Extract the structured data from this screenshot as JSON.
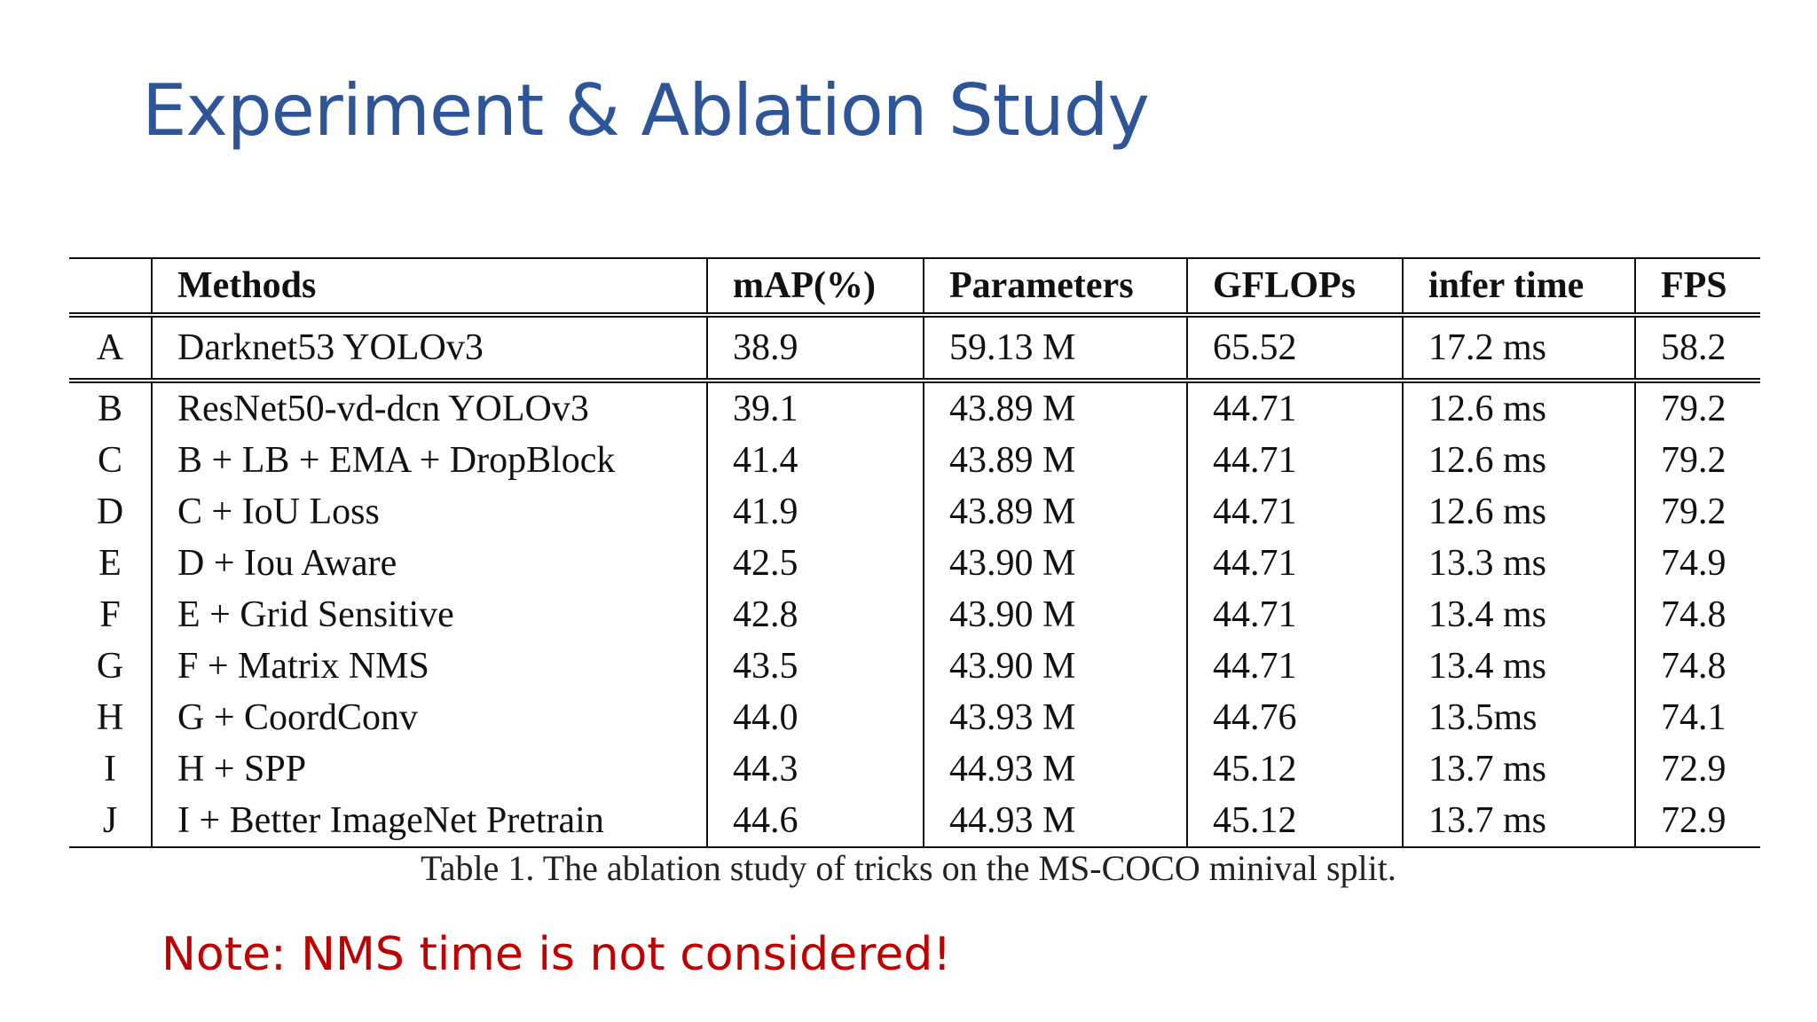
{
  "slide": {
    "title": "Experiment & Ablation Study",
    "note": "Note: NMS time is not considered!",
    "title_color": "#2e5597",
    "note_color": "#c00000"
  },
  "table": {
    "headers": [
      "",
      "Methods",
      "mAP(%)",
      "Parameters",
      "GFLOPs",
      "infer time",
      "FPS"
    ],
    "baseline": [
      "A",
      "Darknet53 YOLOv3",
      "38.9",
      "59.13 M",
      "65.52",
      "17.2 ms",
      "58.2"
    ],
    "rows": [
      [
        "B",
        "ResNet50-vd-dcn YOLOv3",
        "39.1",
        "43.89 M",
        "44.71",
        "12.6 ms",
        "79.2"
      ],
      [
        "C",
        "B + LB + EMA + DropBlock",
        "41.4",
        "43.89 M",
        "44.71",
        "12.6 ms",
        "79.2"
      ],
      [
        "D",
        "C + IoU Loss",
        "41.9",
        "43.89 M",
        "44.71",
        "12.6 ms",
        "79.2"
      ],
      [
        "E",
        "D + Iou Aware",
        "42.5",
        "43.90 M",
        "44.71",
        "13.3 ms",
        "74.9"
      ],
      [
        "F",
        "E + Grid Sensitive",
        "42.8",
        "43.90 M",
        "44.71",
        "13.4 ms",
        "74.8"
      ],
      [
        "G",
        "F + Matrix NMS",
        "43.5",
        "43.90 M",
        "44.71",
        "13.4 ms",
        "74.8"
      ],
      [
        "H",
        "G + CoordConv",
        "44.0",
        "43.93 M",
        "44.76",
        "13.5ms",
        "74.1"
      ],
      [
        "I",
        "H + SPP",
        "44.3",
        "44.93 M",
        "45.12",
        "13.7 ms",
        "72.9"
      ],
      [
        "J",
        "I + Better ImageNet Pretrain",
        "44.6",
        "44.93 M",
        "45.12",
        "13.7 ms",
        "72.9"
      ]
    ],
    "caption": "Table 1. The ablation study of tricks on the MS-COCO minival split."
  }
}
